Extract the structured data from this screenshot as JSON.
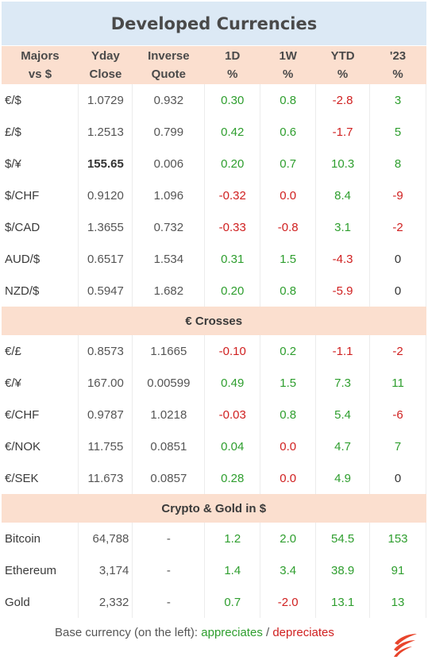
{
  "title": "Developed Currencies",
  "headers": [
    [
      "Majors",
      "vs $"
    ],
    [
      "Yday",
      "Close"
    ],
    [
      "Inverse",
      "Quote"
    ],
    [
      "1D",
      "%"
    ],
    [
      "1W",
      "%"
    ],
    [
      "YTD",
      "%"
    ],
    [
      "'23",
      "%"
    ]
  ],
  "majors": [
    {
      "pair": "€/$",
      "close": "1.0729",
      "inverse": "0.932",
      "d1": "0.30",
      "w1": "0.8",
      "ytd": "-2.8",
      "y23": "3"
    },
    {
      "pair": "£/$",
      "close": "1.2513",
      "inverse": "0.799",
      "d1": "0.42",
      "w1": "0.6",
      "ytd": "-1.7",
      "y23": "5"
    },
    {
      "pair": "$/¥",
      "close": "155.65",
      "inverse": "0.006",
      "d1": "0.20",
      "w1": "0.7",
      "ytd": "10.3",
      "y23": "8"
    },
    {
      "pair": "$/CHF",
      "close": "0.9120",
      "inverse": "1.096",
      "d1": "-0.32",
      "w1": "0.0",
      "ytd": "8.4",
      "y23": "-9"
    },
    {
      "pair": "$/CAD",
      "close": "1.3655",
      "inverse": "0.732",
      "d1": "-0.33",
      "w1": "-0.8",
      "ytd": "3.1",
      "y23": "-2"
    },
    {
      "pair": "AUD/$",
      "close": "0.6517",
      "inverse": "1.534",
      "d1": "0.31",
      "w1": "1.5",
      "ytd": "-4.3",
      "y23": "0"
    },
    {
      "pair": "NZD/$",
      "close": "0.5947",
      "inverse": "1.682",
      "d1": "0.20",
      "w1": "0.8",
      "ytd": "-5.9",
      "y23": "0"
    }
  ],
  "crosses_title": "€ Crosses",
  "crosses": [
    {
      "pair": "€/£",
      "close": "0.8573",
      "inverse": "1.1665",
      "d1": "-0.10",
      "w1": "0.2",
      "ytd": "-1.1",
      "y23": "-2"
    },
    {
      "pair": "€/¥",
      "close": "167.00",
      "inverse": "0.00599",
      "d1": "0.49",
      "w1": "1.5",
      "ytd": "7.3",
      "y23": "11"
    },
    {
      "pair": "€/CHF",
      "close": "0.9787",
      "inverse": "1.0218",
      "d1": "-0.03",
      "w1": "0.8",
      "ytd": "5.4",
      "y23": "-6"
    },
    {
      "pair": "€/NOK",
      "close": "11.755",
      "inverse": "0.0851",
      "d1": "0.04",
      "w1": "0.0",
      "ytd": "4.7",
      "y23": "7"
    },
    {
      "pair": "€/SEK",
      "close": "11.673",
      "inverse": "0.0857",
      "d1": "0.28",
      "w1": "0.0",
      "ytd": "4.9",
      "y23": "0"
    }
  ],
  "crypto_title": "Crypto & Gold in $",
  "crypto": [
    {
      "pair": "Bitcoin",
      "close": "64,788",
      "inverse": "-",
      "d1": "1.2",
      "w1": "2.0",
      "ytd": "54.5",
      "y23": "153"
    },
    {
      "pair": "Ethereum",
      "close": "3,174",
      "inverse": "-",
      "d1": "1.4",
      "w1": "3.4",
      "ytd": "38.9",
      "y23": "91"
    },
    {
      "pair": "Gold",
      "close": "2,332",
      "inverse": "-",
      "d1": "0.7",
      "w1": "-2.0",
      "ytd": "13.1",
      "y23": "13"
    }
  ],
  "footer": {
    "prefix": "Base currency (on the left):",
    "appreciates": "appreciates",
    "sep": "/",
    "depreciates": "depreciates"
  },
  "colors": {
    "title_bg": "#dce9f5",
    "header_bg": "#fbdfcf",
    "positive": "#2e9e2e",
    "negative": "#d02020",
    "logo": "#e8452c"
  },
  "logo_icon": "stylized-flame-logo-icon"
}
